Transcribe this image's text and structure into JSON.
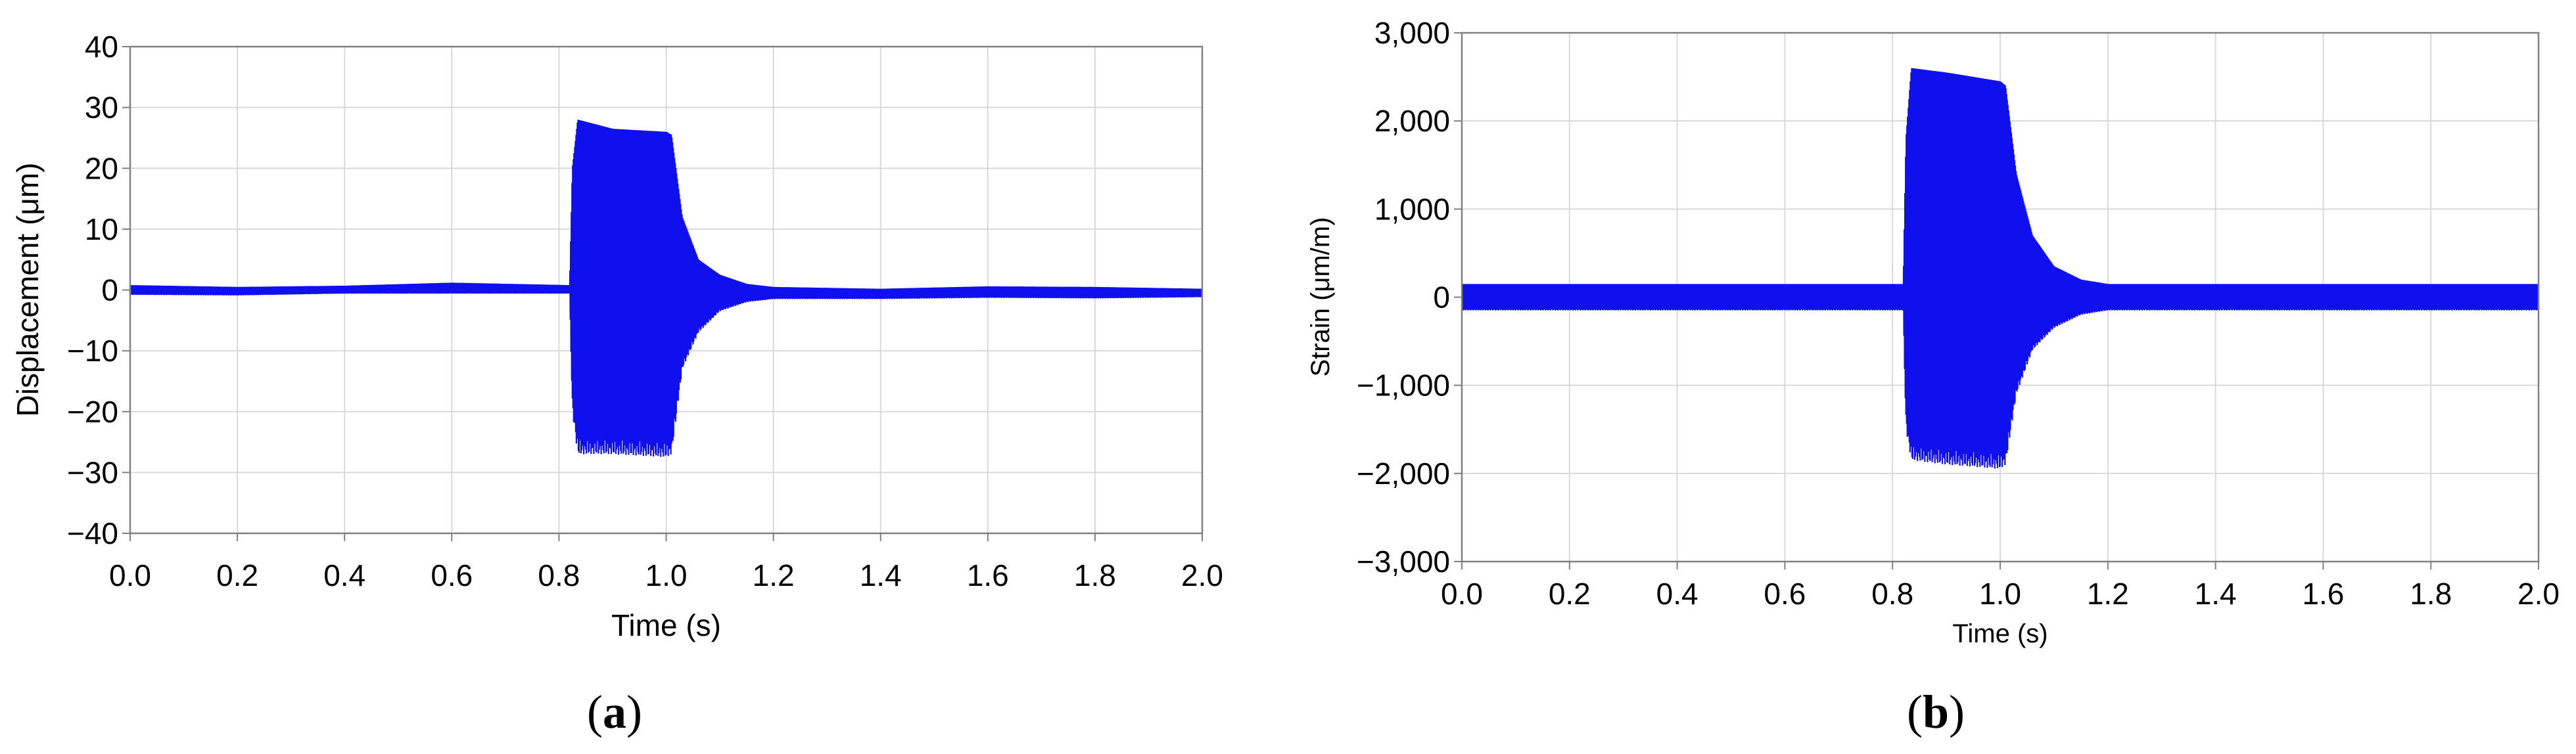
{
  "panels": [
    {
      "label_open": "(",
      "label_letter": "a",
      "label_close": ")"
    },
    {
      "label_open": "(",
      "label_letter": "b",
      "label_close": ")"
    }
  ],
  "chart_data": [
    {
      "type": "line",
      "title": "",
      "xlabel": "Time (s)",
      "ylabel": "Displacement (μm)",
      "xlim": [
        0.0,
        2.0
      ],
      "ylim": [
        -40,
        40
      ],
      "xticks": [
        0.0,
        0.2,
        0.4,
        0.6,
        0.8,
        1.0,
        1.2,
        1.4,
        1.6,
        1.8,
        2.0
      ],
      "xtick_labels": [
        "0.0",
        "0.2",
        "0.4",
        "0.6",
        "0.8",
        "1.0",
        "1.2",
        "1.4",
        "1.6",
        "1.8",
        "2.0"
      ],
      "yticks": [
        -40,
        -30,
        -20,
        -10,
        0,
        10,
        20,
        30,
        40
      ],
      "ytick_labels": [
        "−40",
        "−30",
        "−20",
        "−10",
        "0",
        "10",
        "20",
        "30",
        "40"
      ],
      "grid": true,
      "color": "#1010ee",
      "envelope": {
        "x": [
          0.0,
          0.2,
          0.4,
          0.6,
          0.82,
          0.825,
          0.835,
          0.9,
          1.0,
          1.01,
          1.03,
          1.06,
          1.1,
          1.15,
          1.2,
          1.4,
          1.6,
          1.8,
          2.0
        ],
        "upper": [
          0.8,
          0.5,
          0.7,
          1.2,
          0.8,
          20,
          28,
          26.5,
          26,
          25.5,
          12,
          5,
          2.5,
          1.0,
          0.5,
          0.2,
          0.6,
          0.5,
          0.2
        ],
        "lower": [
          -0.8,
          -0.9,
          -0.6,
          -0.6,
          -0.6,
          -20,
          -27,
          -27,
          -27.5,
          -27,
          -13,
          -7,
          -3.5,
          -2.0,
          -1.5,
          -1.5,
          -1.3,
          -1.4,
          -1.2
        ]
      }
    },
    {
      "type": "line",
      "title": "",
      "xlabel": "Time (s)",
      "ylabel": "Strain (μm/m)",
      "xlim": [
        0.0,
        2.0
      ],
      "ylim": [
        -3000,
        3000
      ],
      "xticks": [
        0.0,
        0.2,
        0.4,
        0.6,
        0.8,
        1.0,
        1.2,
        1.4,
        1.6,
        1.8,
        2.0
      ],
      "xtick_labels": [
        "0.0",
        "0.2",
        "0.4",
        "0.6",
        "0.8",
        "1.0",
        "1.2",
        "1.4",
        "1.6",
        "1.8",
        "2.0"
      ],
      "yticks": [
        -3000,
        -2000,
        -1000,
        0,
        1000,
        2000,
        3000
      ],
      "ytick_labels": [
        "−3,000",
        "−2,000",
        "−1,000",
        "0",
        "1,000",
        "2,000",
        "3,000"
      ],
      "grid": true,
      "color": "#1010ee",
      "envelope": {
        "x": [
          0.0,
          0.2,
          0.4,
          0.6,
          0.82,
          0.825,
          0.835,
          0.9,
          1.0,
          1.01,
          1.03,
          1.06,
          1.1,
          1.15,
          1.2,
          1.4,
          1.6,
          1.8,
          2.0
        ],
        "upper": [
          150,
          150,
          150,
          150,
          150,
          1800,
          2600,
          2550,
          2450,
          2400,
          1400,
          700,
          350,
          200,
          150,
          150,
          150,
          150,
          150
        ],
        "lower": [
          -150,
          -150,
          -150,
          -150,
          -150,
          -1500,
          -1850,
          -1900,
          -1950,
          -1900,
          -1100,
          -600,
          -350,
          -200,
          -150,
          -150,
          -150,
          -150,
          -150
        ]
      }
    }
  ]
}
